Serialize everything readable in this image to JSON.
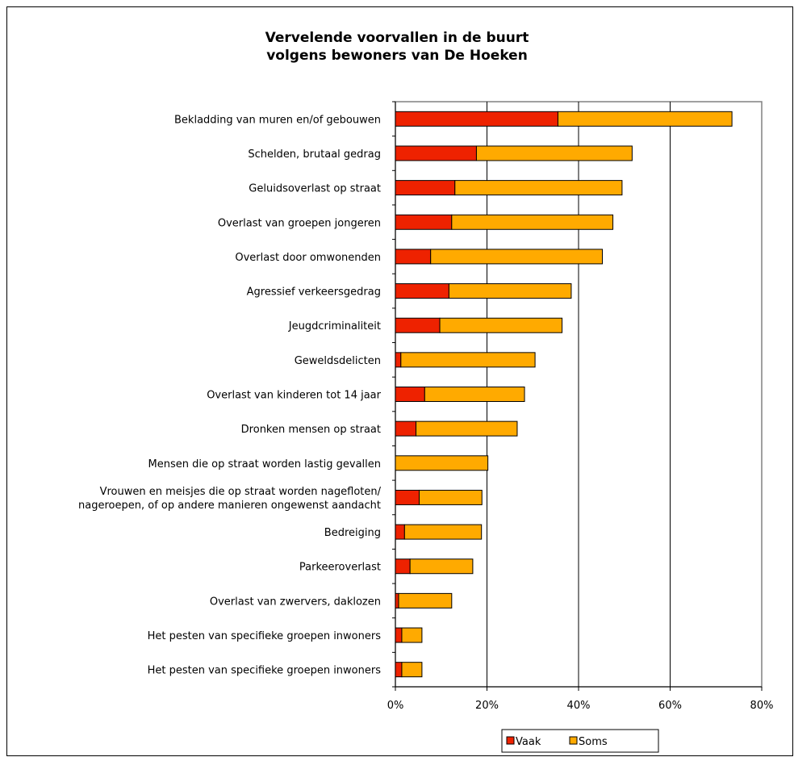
{
  "chart_data": {
    "type": "bar",
    "orientation": "horizontal",
    "stacked": true,
    "title_lines": [
      "Vervelende voorvallen in de buurt",
      "volgens bewoners van De Hoeken"
    ],
    "categories": [
      [
        "Bekladding van muren en/of gebouwen"
      ],
      [
        "Schelden, brutaal gedrag"
      ],
      [
        "Geluidsoverlast op straat"
      ],
      [
        "Overlast van groepen jongeren"
      ],
      [
        "Overlast door omwonenden"
      ],
      [
        "Agressief verkeersgedrag"
      ],
      [
        "Jeugdcriminaliteit"
      ],
      [
        "Geweldsdelicten"
      ],
      [
        "Overlast van kinderen tot 14 jaar"
      ],
      [
        "Dronken mensen op straat"
      ],
      [
        "Mensen die op straat worden lastig gevallen"
      ],
      [
        "Vrouwen en meisjes die op straat worden nagefloten/",
        "nageroepen, of op andere manieren ongewenst aandacht"
      ],
      [
        "Bedreiging"
      ],
      [
        "Parkeeroverlast"
      ],
      [
        "Overlast van zwervers, daklozen"
      ],
      [
        "Het pesten van specifieke groepen inwoners"
      ],
      [
        "Het pesten van specifieke groepen inwoners"
      ]
    ],
    "series": [
      {
        "name": "Vaak",
        "color": "#ee2200",
        "values": [
          35.5,
          17.7,
          13.0,
          12.3,
          7.7,
          11.7,
          9.7,
          1.2,
          6.4,
          4.5,
          0,
          5.2,
          2.0,
          3.2,
          0.7,
          1.4,
          1.4
        ]
      },
      {
        "name": "Soms",
        "color": "#ffaa00",
        "values": [
          38.0,
          34.0,
          36.5,
          35.2,
          37.5,
          26.7,
          26.7,
          29.3,
          21.8,
          22.1,
          20.2,
          13.7,
          16.8,
          13.7,
          11.6,
          4.4,
          4.4
        ]
      }
    ],
    "xlim": [
      0,
      80
    ],
    "xticks": [
      0,
      20,
      40,
      60,
      80
    ],
    "xtick_labels": [
      "0%",
      "20%",
      "40%",
      "60%",
      "80%"
    ],
    "grid": "vertical",
    "legend_position": "bottom"
  }
}
